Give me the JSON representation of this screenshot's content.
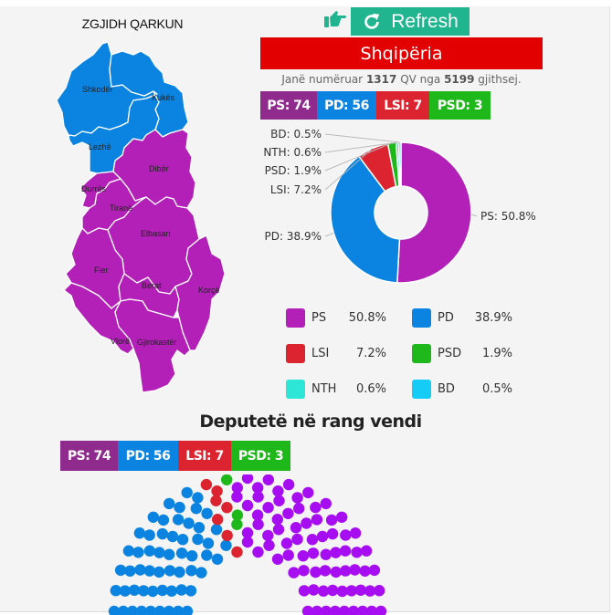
{
  "map": {
    "title": "ZGJIDH QARKUN",
    "regions": [
      {
        "name": "Shkodër",
        "winner": "PD"
      },
      {
        "name": "Kukës",
        "winner": "PD"
      },
      {
        "name": "Lezhë",
        "winner": "PD"
      },
      {
        "name": "Dibër",
        "winner": "PS"
      },
      {
        "name": "Durrës",
        "winner": "PS"
      },
      {
        "name": "Tiranë",
        "winner": "PS"
      },
      {
        "name": "Elbasan",
        "winner": "PS"
      },
      {
        "name": "Fier",
        "winner": "PS"
      },
      {
        "name": "Berat",
        "winner": "PS"
      },
      {
        "name": "Korçë",
        "winner": "PS"
      },
      {
        "name": "Vlorë",
        "winner": "PS"
      },
      {
        "name": "Gjirokastër",
        "winner": "PS"
      }
    ]
  },
  "header": {
    "hand_icon": "hand-pointing-right-icon",
    "refresh_icon": "refresh-icon",
    "refresh_label": "Refresh",
    "region_name": "Shqipëria",
    "counted_prefix": "Janë numëruar",
    "counted_value": "1317",
    "counted_mid": "QV nga",
    "counted_total": "5199",
    "counted_suffix": "gjithsej."
  },
  "colors": {
    "PS": "#b320b7",
    "PD": "#0a84e0",
    "LSI": "#dc2431",
    "PSD": "#1fb81a",
    "NTH": "#2ee6d6",
    "BD": "#14ccf5",
    "badge_PS": "#8e2b8d",
    "seat_PS": "#a60df0",
    "region_bar": "#e20000",
    "refresh_button": "#20b48f"
  },
  "seat_badges": [
    {
      "party": "PS",
      "label": "PS: 74",
      "color": "#8e2b8d"
    },
    {
      "party": "PD",
      "label": "PD: 56",
      "color": "#0a84e0"
    },
    {
      "party": "LSI",
      "label": "LSI: 7",
      "color": "#dc2431"
    },
    {
      "party": "PSD",
      "label": "PSD: 3",
      "color": "#1fb81a"
    }
  ],
  "seats_section": {
    "title": "Deputetë në rang vendi",
    "badges": [
      {
        "party": "PS",
        "label": "PS: 74",
        "color": "#8e2b8d"
      },
      {
        "party": "PD",
        "label": "PD: 56",
        "color": "#0a84e0"
      },
      {
        "party": "LSI",
        "label": "LSI: 7",
        "color": "#dc2431"
      },
      {
        "party": "PSD",
        "label": "PSD: 3",
        "color": "#1fb81a"
      }
    ]
  },
  "legend": [
    {
      "party": "PS",
      "pct": "50.8%"
    },
    {
      "party": "PD",
      "pct": "38.9%"
    },
    {
      "party": "LSI",
      "pct": "7.2%"
    },
    {
      "party": "PSD",
      "pct": "1.9%"
    },
    {
      "party": "NTH",
      "pct": "0.6%"
    },
    {
      "party": "BD",
      "pct": "0.5%"
    }
  ],
  "chart_data": [
    {
      "type": "pie",
      "title": "Shqipëria",
      "donut": true,
      "categories": [
        "PS",
        "PD",
        "LSI",
        "PSD",
        "NTH",
        "BD"
      ],
      "values": [
        50.8,
        38.9,
        7.2,
        1.9,
        0.6,
        0.5
      ],
      "labels": [
        "PS: 50.8%",
        "PD: 38.9%",
        "LSI: 7.2%",
        "PSD: 1.9%",
        "NTH: 0.6%",
        "BD: 0.5%"
      ],
      "colors": [
        "#b320b7",
        "#0a84e0",
        "#dc2431",
        "#1fb81a",
        "#2ee6d6",
        "#14ccf5"
      ],
      "legend_position": "bottom"
    },
    {
      "type": "parliament",
      "title": "Deputetë në rang vendi",
      "categories": [
        "PD",
        "LSI",
        "PSD",
        "PS"
      ],
      "values": [
        56,
        7,
        3,
        74
      ],
      "total_seats": 140,
      "colors": [
        "#0a84e0",
        "#dc2431",
        "#1fb81a",
        "#a60df0"
      ]
    }
  ]
}
